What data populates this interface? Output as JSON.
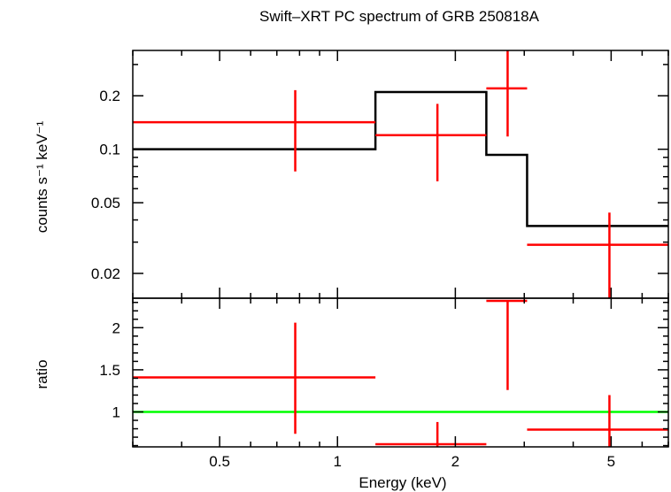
{
  "chart_data": [
    {
      "type": "scatter",
      "title": "Swift–XRT PC spectrum of GRB 250818A",
      "xlabel": "",
      "ylabel": "counts s⁻¹ keV⁻¹",
      "xscale": "log",
      "yscale": "log",
      "xlim": [
        0.3,
        7.0
      ],
      "ylim": [
        0.0145,
        0.36
      ],
      "y_ticks": [
        {
          "value": 0.02,
          "label": "0.02"
        },
        {
          "value": 0.05,
          "label": "0.05"
        },
        {
          "value": 0.1,
          "label": "0.1"
        },
        {
          "value": 0.2,
          "label": "0.2"
        }
      ],
      "series": [
        {
          "kind": "data_with_errors",
          "color": "#ff0000",
          "points": [
            {
              "x": 0.78,
              "xlo": 0.3,
              "xhi": 1.25,
              "y": 0.142,
              "ylo": 0.075,
              "yhi": 0.215
            },
            {
              "x": 1.8,
              "xlo": 1.25,
              "xhi": 2.4,
              "y": 0.12,
              "ylo": 0.066,
              "yhi": 0.18
            },
            {
              "x": 2.72,
              "xlo": 2.4,
              "xhi": 3.05,
              "y": 0.22,
              "ylo": 0.118,
              "yhi": 0.36
            },
            {
              "x": 4.95,
              "xlo": 3.05,
              "xhi": 7.0,
              "y": 0.029,
              "ylo": 0.0145,
              "yhi": 0.044
            }
          ]
        },
        {
          "kind": "model_step",
          "color": "#000000",
          "steps": [
            {
              "xlo": 0.3,
              "xhi": 1.25,
              "y": 0.1
            },
            {
              "xlo": 1.25,
              "xhi": 2.4,
              "y": 0.21
            },
            {
              "xlo": 2.4,
              "xhi": 3.05,
              "y": 0.093
            },
            {
              "xlo": 3.05,
              "xhi": 7.0,
              "y": 0.037
            }
          ]
        }
      ]
    },
    {
      "type": "scatter",
      "title": "",
      "xlabel": "Energy (keV)",
      "ylabel": "ratio",
      "xscale": "log",
      "yscale": "linear",
      "xlim": [
        0.3,
        7.0
      ],
      "ylim": [
        0.585,
        2.35
      ],
      "x_ticks": [
        {
          "value": 0.5,
          "label": "0.5"
        },
        {
          "value": 1,
          "label": "1"
        },
        {
          "value": 2,
          "label": "2"
        },
        {
          "value": 5,
          "label": "5"
        }
      ],
      "y_ticks": [
        {
          "value": 1,
          "label": "1"
        },
        {
          "value": 1.5,
          "label": "1.5"
        },
        {
          "value": 2,
          "label": "2"
        }
      ],
      "series": [
        {
          "kind": "data_with_errors",
          "color": "#ff0000",
          "points": [
            {
              "x": 0.78,
              "xlo": 0.3,
              "xhi": 1.25,
              "y": 1.41,
              "ylo": 0.74,
              "yhi": 2.06
            },
            {
              "x": 1.8,
              "xlo": 1.25,
              "xhi": 2.4,
              "y": 0.61,
              "ylo": 0.59,
              "yhi": 0.88
            },
            {
              "x": 2.72,
              "xlo": 2.4,
              "xhi": 3.05,
              "y": 2.35,
              "ylo": 1.26,
              "yhi": 2.35
            },
            {
              "x": 4.95,
              "xlo": 3.05,
              "xhi": 7.0,
              "y": 0.79,
              "ylo": 0.59,
              "yhi": 1.2
            }
          ]
        },
        {
          "kind": "reference_line",
          "color": "#00ff00",
          "y": 1.0
        }
      ]
    }
  ]
}
